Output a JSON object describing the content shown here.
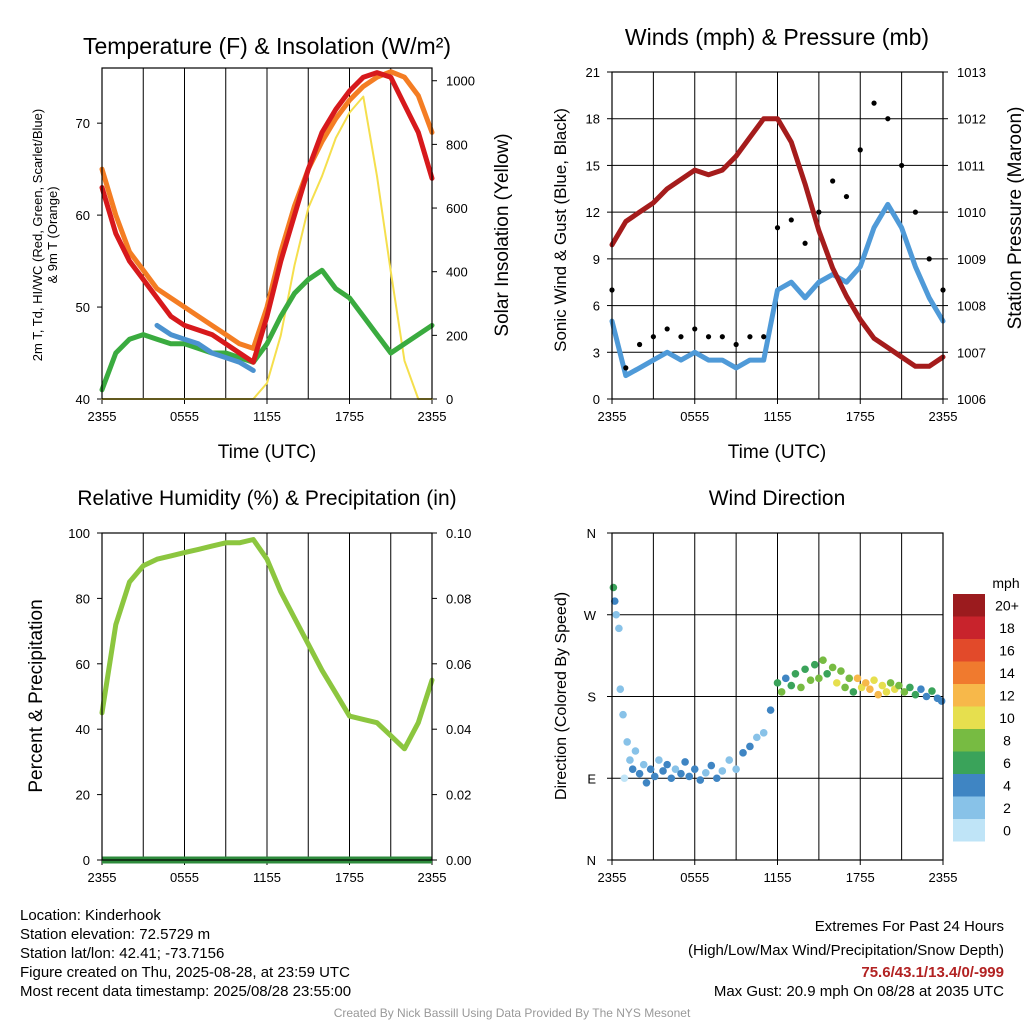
{
  "panels": {
    "temperature": {
      "title": "Temperature (F) & Insolation (W/m²)",
      "ylabel_left_line1": "2m T, Td, HI/WC (Red, Green, Scarlet/Blue)",
      "ylabel_left_line2": "& 9m T (Orange)",
      "ylabel_right": "Solar Insolation (Yellow)",
      "xlabel": "Time (UTC)"
    },
    "winds": {
      "title": "Winds (mph) & Pressure (mb)",
      "ylabel_left": "Sonic Wind & Gust (Blue, Black)",
      "ylabel_right": "Station Pressure (Maroon)",
      "xlabel": "Time (UTC)"
    },
    "humidity": {
      "title": "Relative Humidity (%) & Precipitation (in)",
      "ylabel_left": "Percent & Precipitation"
    },
    "direction": {
      "title": "Wind Direction",
      "ylabel_left": "Direction (Colored By Speed)",
      "legend_title": "mph"
    }
  },
  "info": {
    "location": "Location: Kinderhook",
    "elevation": "Station elevation: 72.5729 m",
    "latlon": "Station lat/lon: 42.41; -73.7156",
    "created": "Figure created on Thu, 2025-08-28, at 23:59 UTC",
    "recent": "Most recent data timestamp: 2025/08/28 23:55:00"
  },
  "extremes": {
    "heading": "Extremes For Past 24 Hours",
    "subheading": "(High/Low/Max Wind/Precipitation/Snow Depth)",
    "values": "75.6/43.1/13.4/0/-999",
    "gust": "Max Gust: 20.9 mph On 08/28 at 2035 UTC"
  },
  "credit": "Created By Nick Bassill Using Data Provided By The NYS Mesonet",
  "colors": {
    "red": "#d7191c",
    "orange": "#f47d23",
    "green": "#3aab3f",
    "blue": "#4b92cf",
    "yellow": "#f5df4d",
    "maroon": "#a51c1c",
    "black": "#000000",
    "wind_blue": "#4f9ad8",
    "rh_green": "#8cc63f",
    "precip_green": "#2e8b3c"
  },
  "chart_data": [
    {
      "id": "temperature",
      "type": "line",
      "title": "Temperature (F) & Insolation (W/m²)",
      "xlabel": "Time (UTC)",
      "x_ticks": [
        "2355",
        "0555",
        "1155",
        "1755",
        "2355"
      ],
      "x_unit": "hours since 2355 UTC",
      "x": [
        0,
        1,
        2,
        3,
        4,
        5,
        6,
        7,
        8,
        9,
        10,
        11,
        12,
        13,
        14,
        15,
        16,
        17,
        18,
        19,
        20,
        21,
        22,
        23,
        24
      ],
      "ylim": [
        40,
        76
      ],
      "y_ticks": [
        40,
        50,
        60,
        70
      ],
      "y2lim": [
        0,
        1040
      ],
      "y2_ticks": [
        0,
        200,
        400,
        600,
        800,
        1000
      ],
      "series": [
        {
          "color": "#f47d23",
          "axis": "left",
          "values": [
            65,
            60,
            56,
            54,
            52,
            51,
            50,
            49,
            48,
            47,
            46,
            45.5,
            50,
            56,
            61,
            65,
            68,
            70.5,
            72.5,
            74,
            75,
            75.6,
            75,
            73,
            69
          ]
        },
        {
          "color": "#d7191c",
          "axis": "left",
          "values": [
            63,
            58,
            55,
            53,
            51,
            49,
            48,
            47.5,
            47,
            46,
            45,
            44,
            49,
            55,
            60,
            65,
            69,
            71.5,
            73.5,
            75,
            75.5,
            75,
            72,
            69,
            64
          ]
        },
        {
          "color": "#4b92cf",
          "axis": "left",
          "values": [
            null,
            null,
            null,
            null,
            48,
            47,
            46.5,
            46,
            45,
            44.5,
            44,
            43.1,
            null,
            null,
            null,
            null,
            null,
            null,
            null,
            null,
            null,
            null,
            null,
            null,
            null
          ]
        },
        {
          "color": "#3aab3f",
          "axis": "left",
          "values": [
            41,
            45,
            46.5,
            47,
            46.5,
            46,
            46,
            45.5,
            45,
            45,
            44.5,
            44,
            46,
            49,
            51.5,
            53,
            54,
            52,
            51,
            49,
            47,
            45,
            46,
            47,
            48
          ]
        },
        {
          "color": "#f5df4d",
          "axis": "right",
          "values": [
            0,
            0,
            0,
            0,
            0,
            0,
            0,
            0,
            0,
            0,
            0,
            0,
            50,
            200,
            420,
            600,
            700,
            820,
            900,
            950,
            700,
            400,
            120,
            0,
            0
          ]
        }
      ]
    },
    {
      "id": "winds",
      "type": "line",
      "title": "Winds (mph) & Pressure (mb)",
      "xlabel": "Time (UTC)",
      "x_ticks": [
        "2355",
        "0555",
        "1155",
        "1755",
        "2355"
      ],
      "x_unit": "hours since 2355 UTC",
      "x": [
        0,
        1,
        2,
        3,
        4,
        5,
        6,
        7,
        8,
        9,
        10,
        11,
        12,
        13,
        14,
        15,
        16,
        17,
        18,
        19,
        20,
        21,
        22,
        23,
        24
      ],
      "ylim": [
        0,
        21
      ],
      "y_ticks": [
        0,
        3,
        6,
        9,
        12,
        15,
        18,
        21
      ],
      "y2lim": [
        1006,
        1013
      ],
      "y2_ticks": [
        1006,
        1007,
        1008,
        1009,
        1010,
        1011,
        1012,
        1013
      ],
      "series": [
        {
          "color": "#4f9ad8",
          "axis": "left",
          "values": [
            5,
            1.5,
            2,
            2.5,
            3,
            2.5,
            3,
            2.5,
            2.5,
            2,
            2.5,
            2.5,
            7,
            7.5,
            6.5,
            7.5,
            8,
            7.5,
            8.5,
            11,
            12.5,
            11,
            8.5,
            6.5,
            5
          ]
        },
        {
          "color": "#000000",
          "axis": "left",
          "values": [
            7,
            2,
            3.5,
            4,
            4.5,
            4,
            4.5,
            4,
            4,
            3.5,
            4,
            4,
            11,
            11.5,
            10,
            12,
            14,
            13,
            16,
            19,
            18,
            15,
            12,
            9,
            7
          ]
        },
        {
          "color": "#a51c1c",
          "axis": "right",
          "values": [
            1009.3,
            1009.8,
            1010,
            1010.2,
            1010.5,
            1010.7,
            1010.9,
            1010.8,
            1010.9,
            1011.2,
            1011.6,
            1012.0,
            1012.0,
            1011.5,
            1010.6,
            1009.6,
            1008.8,
            1008.2,
            1007.7,
            1007.3,
            1007.1,
            1006.9,
            1006.7,
            1006.7,
            1006.9
          ]
        }
      ]
    },
    {
      "id": "humidity",
      "type": "line",
      "title": "Relative Humidity (%) & Precipitation (in)",
      "x_ticks": [
        "2355",
        "0555",
        "1155",
        "1755",
        "2355"
      ],
      "x_unit": "hours since 2355 UTC",
      "x": [
        0,
        1,
        2,
        3,
        4,
        5,
        6,
        7,
        8,
        9,
        10,
        11,
        12,
        13,
        14,
        15,
        16,
        17,
        18,
        19,
        20,
        21,
        22,
        23,
        24
      ],
      "ylim": [
        0,
        100
      ],
      "y_ticks": [
        0,
        20,
        40,
        60,
        80,
        100
      ],
      "y2lim": [
        0,
        0.1
      ],
      "y2_ticks": [
        "0.00",
        "0.02",
        "0.04",
        "0.06",
        "0.08",
        "0.10"
      ],
      "series": [
        {
          "color": "#8cc63f",
          "axis": "left",
          "values": [
            45,
            72,
            85,
            90,
            92,
            93,
            94,
            95,
            96,
            97,
            97,
            98,
            92,
            82,
            74,
            66,
            58,
            51,
            44,
            43,
            42,
            38,
            34,
            42,
            55
          ]
        },
        {
          "color": "#2e8b3c",
          "axis": "right",
          "values": [
            0,
            0,
            0,
            0,
            0,
            0,
            0,
            0,
            0,
            0,
            0,
            0,
            0,
            0,
            0,
            0,
            0,
            0,
            0,
            0,
            0,
            0,
            0,
            0,
            0
          ]
        }
      ]
    },
    {
      "id": "direction",
      "type": "scatter",
      "title": "Wind Direction",
      "x_ticks": [
        "2355",
        "0555",
        "1155",
        "1755",
        "2355"
      ],
      "x_unit": "hours since 2355 UTC",
      "y_unit": "degrees",
      "ylim": [
        0,
        360
      ],
      "y_ticks": [
        "N",
        "E",
        "S",
        "W",
        "N"
      ],
      "legend_labels": [
        "0",
        "2",
        "4",
        "6",
        "8",
        "10",
        "12",
        "14",
        "16",
        "18",
        "20+"
      ],
      "legend_colors": [
        "#bfe4f7",
        "#88c2e8",
        "#3f85c3",
        "#3aa35a",
        "#77bb42",
        "#e6df4e",
        "#f7b84a",
        "#f07a2e",
        "#e24a2a",
        "#c8232c",
        "#9b1b1e"
      ],
      "points": [
        [
          0.1,
          300,
          5
        ],
        [
          0.2,
          285,
          3
        ],
        [
          0.3,
          270,
          2
        ],
        [
          0.5,
          255,
          1
        ],
        [
          0.6,
          188,
          2
        ],
        [
          0.8,
          160,
          2
        ],
        [
          0.9,
          90,
          0
        ],
        [
          1.1,
          130,
          2
        ],
        [
          1.3,
          110,
          2
        ],
        [
          1.5,
          100,
          3
        ],
        [
          1.7,
          120,
          2
        ],
        [
          2.0,
          95,
          3
        ],
        [
          2.3,
          105,
          2
        ],
        [
          2.5,
          85,
          4
        ],
        [
          2.8,
          100,
          3
        ],
        [
          3.1,
          92,
          3
        ],
        [
          3.4,
          110,
          2
        ],
        [
          3.7,
          98,
          3
        ],
        [
          4.0,
          105,
          4
        ],
        [
          4.3,
          90,
          3
        ],
        [
          4.6,
          100,
          2
        ],
        [
          5.0,
          95,
          3
        ],
        [
          5.3,
          108,
          3
        ],
        [
          5.6,
          92,
          4
        ],
        [
          6.0,
          100,
          3
        ],
        [
          6.4,
          88,
          3
        ],
        [
          6.8,
          96,
          2
        ],
        [
          7.2,
          104,
          3
        ],
        [
          7.6,
          90,
          3
        ],
        [
          8.0,
          98,
          2
        ],
        [
          8.5,
          110,
          2
        ],
        [
          9.0,
          100,
          2
        ],
        [
          9.5,
          118,
          3
        ],
        [
          10.0,
          125,
          3
        ],
        [
          10.5,
          135,
          2
        ],
        [
          11.0,
          140,
          2
        ],
        [
          11.5,
          165,
          3
        ],
        [
          12.0,
          195,
          6
        ],
        [
          12.3,
          185,
          7
        ],
        [
          12.6,
          200,
          4
        ],
        [
          13.0,
          192,
          6
        ],
        [
          13.3,
          205,
          5
        ],
        [
          13.7,
          190,
          7
        ],
        [
          14.0,
          210,
          6
        ],
        [
          14.4,
          198,
          8
        ],
        [
          14.7,
          215,
          5
        ],
        [
          15.0,
          200,
          7
        ],
        [
          15.3,
          220,
          8
        ],
        [
          15.6,
          205,
          6
        ],
        [
          16.0,
          212,
          7
        ],
        [
          16.3,
          195,
          9
        ],
        [
          16.6,
          208,
          8
        ],
        [
          16.9,
          190,
          7
        ],
        [
          17.2,
          200,
          8
        ],
        [
          17.5,
          185,
          6
        ],
        [
          17.8,
          200,
          11
        ],
        [
          18.1,
          190,
          10
        ],
        [
          18.4,
          195,
          12
        ],
        [
          18.7,
          188,
          11
        ],
        [
          19.0,
          198,
          10
        ],
        [
          19.3,
          182,
          12
        ],
        [
          19.6,
          192,
          10
        ],
        [
          19.9,
          185,
          9
        ],
        [
          20.2,
          195,
          8
        ],
        [
          20.5,
          188,
          10
        ],
        [
          20.8,
          192,
          8
        ],
        [
          21.2,
          185,
          7
        ],
        [
          21.6,
          190,
          6
        ],
        [
          22.0,
          182,
          5
        ],
        [
          22.4,
          188,
          4
        ],
        [
          22.8,
          180,
          4
        ],
        [
          23.2,
          186,
          5
        ],
        [
          23.6,
          178,
          4
        ],
        [
          23.9,
          175,
          4
        ]
      ]
    }
  ]
}
